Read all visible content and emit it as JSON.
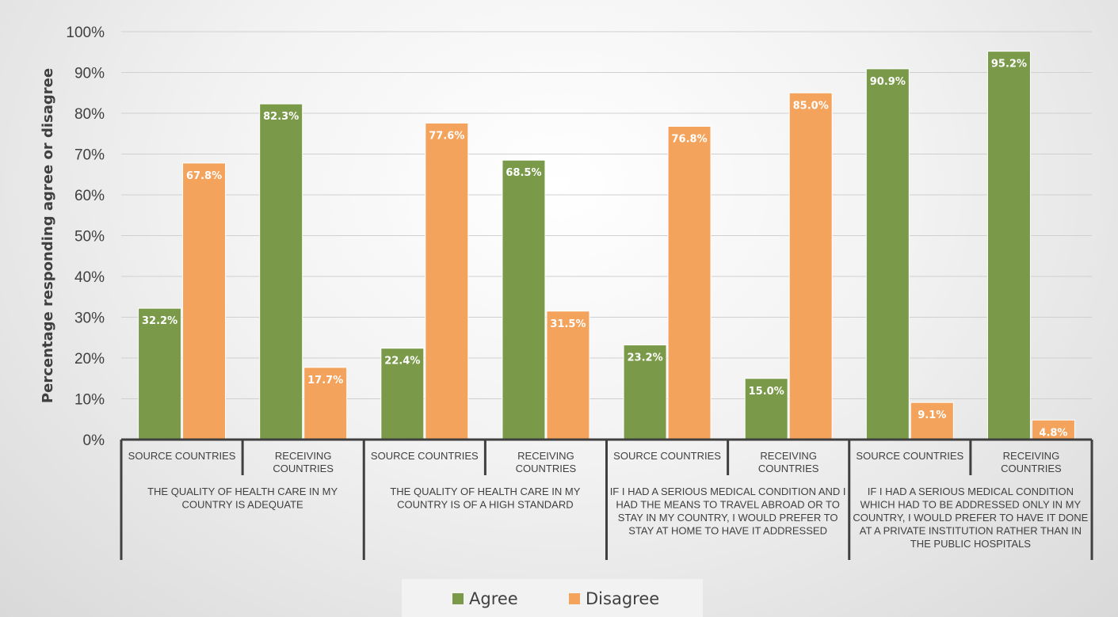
{
  "chart_data": {
    "type": "bar",
    "ylabel": "Percentage responding agree or disagree",
    "ylim": [
      0,
      100
    ],
    "yticks": [
      "0%",
      "10%",
      "20%",
      "30%",
      "40%",
      "50%",
      "60%",
      "70%",
      "80%",
      "90%",
      "100%"
    ],
    "grid": true,
    "legend_position": "bottom",
    "groups": [
      {
        "label": "THE QUALITY OF HEALTH CARE IN MY COUNTRY IS ADEQUATE",
        "label_lines": [
          "THE QUALITY OF HEALTH CARE IN MY",
          "COUNTRY IS ADEQUATE"
        ],
        "categories": [
          {
            "label_lines": [
              "SOURCE COUNTRIES"
            ],
            "agree": 32.2,
            "disagree": 67.8,
            "agree_label": "32.2%",
            "disagree_label": "67.8%"
          },
          {
            "label_lines": [
              "RECEIVING",
              "COUNTRIES"
            ],
            "agree": 82.3,
            "disagree": 17.7,
            "agree_label": "82.3%",
            "disagree_label": "17.7%"
          }
        ]
      },
      {
        "label": "THE QUALITY OF HEALTH CARE IN MY COUNTRY IS OF A HIGH STANDARD",
        "label_lines": [
          "THE QUALITY OF HEALTH CARE IN MY",
          "COUNTRY IS OF A HIGH STANDARD"
        ],
        "categories": [
          {
            "label_lines": [
              "SOURCE COUNTRIES"
            ],
            "agree": 22.4,
            "disagree": 77.6,
            "agree_label": "22.4%",
            "disagree_label": "77.6%"
          },
          {
            "label_lines": [
              "RECEIVING",
              "COUNTRIES"
            ],
            "agree": 68.5,
            "disagree": 31.5,
            "agree_label": "68.5%",
            "disagree_label": "31.5%"
          }
        ]
      },
      {
        "label": "IF I HAD A SERIOUS MEDICAL CONDITION AND I HAD THE MEANS TO TRAVEL ABROAD OR TO STAY IN MY COUNTRY, I WOULD PREFER TO STAY AT HOME TO HAVE IT ADDRESSED",
        "label_lines": [
          "IF I HAD A SERIOUS MEDICAL CONDITION AND I",
          "HAD THE MEANS TO TRAVEL ABROAD OR TO",
          "STAY IN MY COUNTRY, I WOULD PREFER TO",
          "STAY AT HOME TO HAVE IT ADDRESSED"
        ],
        "categories": [
          {
            "label_lines": [
              "SOURCE COUNTRIES"
            ],
            "agree": 23.2,
            "disagree": 76.8,
            "agree_label": "23.2%",
            "disagree_label": "76.8%"
          },
          {
            "label_lines": [
              "RECEIVING",
              "COUNTRIES"
            ],
            "agree": 15.0,
            "disagree": 85.0,
            "agree_label": "15.0%",
            "disagree_label": "85.0%"
          }
        ]
      },
      {
        "label": "IF I HAD A SERIOUS MEDICAL CONDITION WHICH HAD TO BE ADDRESSED ONLY IN MY COUNTRY, I WOULD PREFER TO HAVE IT DONE AT A PRIVATE INSTITUTION RATHER THAN IN THE PUBLIC HOSPITALS",
        "label_lines": [
          "IF I HAD A SERIOUS MEDICAL CONDITION",
          "WHICH HAD TO BE  ADDRESSED ONLY IN MY",
          "COUNTRY, I WOULD PREFER TO HAVE IT DONE",
          "AT A PRIVATE INSTITUTION RATHER THAN IN",
          "THE PUBLIC HOSPITALS"
        ],
        "categories": [
          {
            "label_lines": [
              "SOURCE COUNTRIES"
            ],
            "agree": 90.9,
            "disagree": 9.1,
            "agree_label": "90.9%",
            "disagree_label": "9.1%"
          },
          {
            "label_lines": [
              "RECEIVING",
              "COUNTRIES"
            ],
            "agree": 95.2,
            "disagree": 4.8,
            "agree_label": "95.2%",
            "disagree_label": "4.8%"
          }
        ]
      }
    ],
    "series": [
      {
        "name": "Agree",
        "key": "agree",
        "color": "#7a9a4a"
      },
      {
        "name": "Disagree",
        "key": "disagree",
        "color": "#f4a35c"
      }
    ]
  }
}
